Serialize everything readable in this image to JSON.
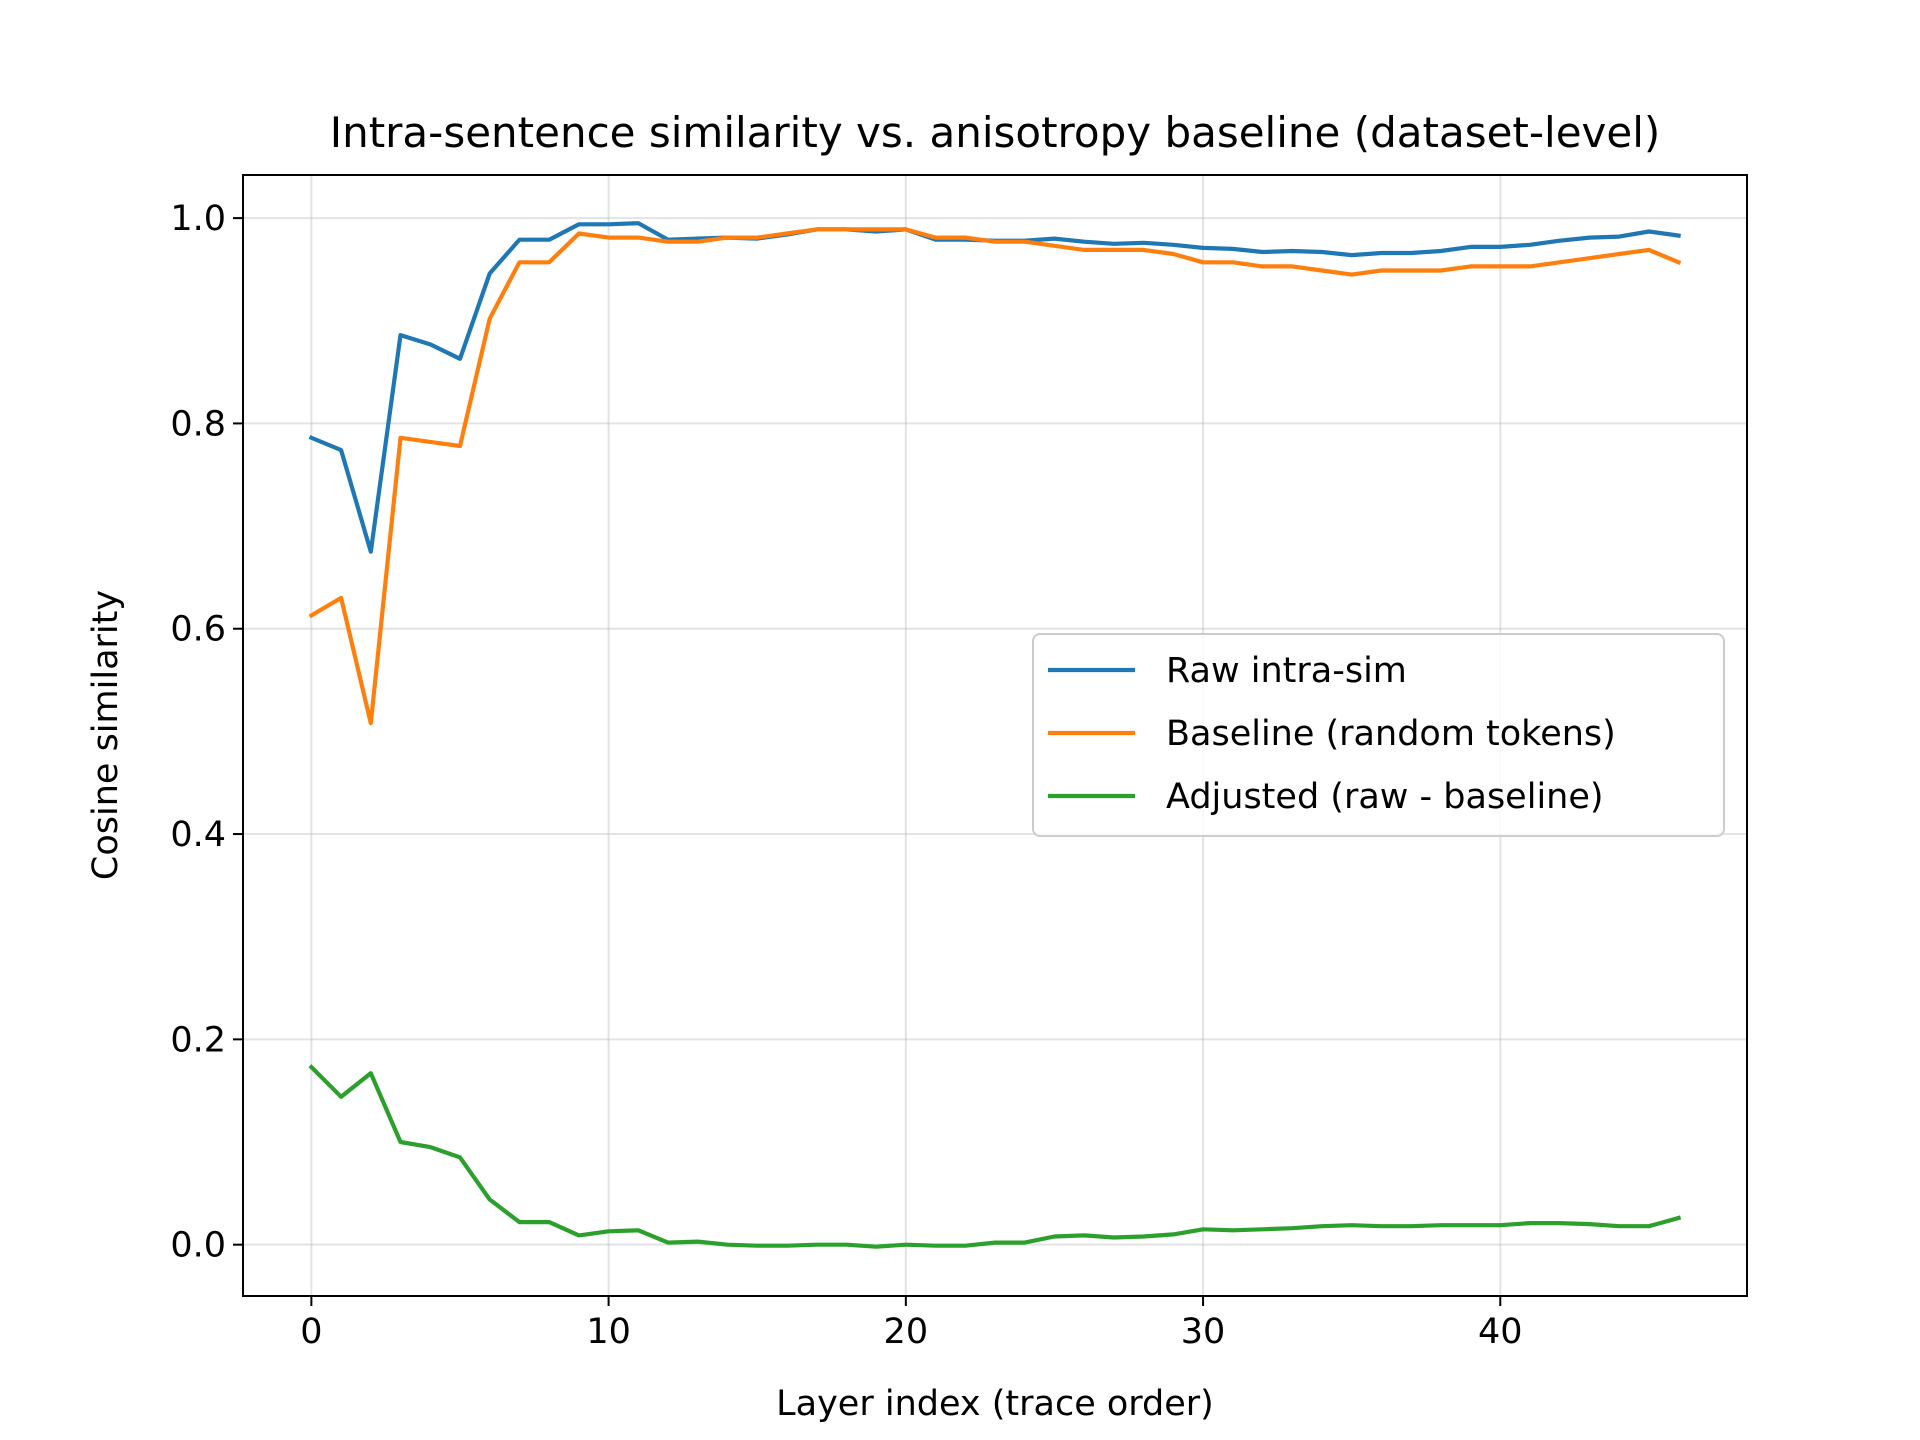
{
  "chart_data": {
    "type": "line",
    "title": "Intra-sentence similarity vs. anisotropy baseline (dataset-level)",
    "xlabel": "Layer index (trace order)",
    "ylabel": "Cosine similarity",
    "xlim": [
      -2.3,
      48.3
    ],
    "ylim": [
      -0.05,
      1.042
    ],
    "xticks": [
      0,
      10,
      20,
      30,
      40
    ],
    "yticks": [
      0.0,
      0.2,
      0.4,
      0.6,
      0.8,
      1.0
    ],
    "xtick_labels": [
      "0",
      "10",
      "20",
      "30",
      "40"
    ],
    "ytick_labels": [
      "0.0",
      "0.2",
      "0.4",
      "0.6",
      "0.8",
      "1.0"
    ],
    "grid": true,
    "legend_position": "center-right",
    "x": [
      0,
      1,
      2,
      3,
      4,
      5,
      6,
      7,
      8,
      9,
      10,
      11,
      12,
      13,
      14,
      15,
      16,
      17,
      18,
      19,
      20,
      21,
      22,
      23,
      24,
      25,
      26,
      27,
      28,
      29,
      30,
      31,
      32,
      33,
      34,
      35,
      36,
      37,
      38,
      39,
      40,
      41,
      42,
      43,
      44,
      45,
      46
    ],
    "series": [
      {
        "name": "Raw intra-sim",
        "color": "#1f77b4",
        "values": [
          0.786,
          0.774,
          0.675,
          0.886,
          0.877,
          0.863,
          0.946,
          0.979,
          0.979,
          0.994,
          0.994,
          0.995,
          0.979,
          0.98,
          0.981,
          0.98,
          0.984,
          0.989,
          0.989,
          0.987,
          0.989,
          0.979,
          0.979,
          0.978,
          0.978,
          0.98,
          0.977,
          0.975,
          0.976,
          0.974,
          0.971,
          0.97,
          0.967,
          0.968,
          0.967,
          0.964,
          0.966,
          0.966,
          0.968,
          0.972,
          0.972,
          0.974,
          0.978,
          0.981,
          0.982,
          0.987,
          0.983
        ]
      },
      {
        "name": "Baseline (random tokens)",
        "color": "#ff7f0e",
        "values": [
          0.613,
          0.63,
          0.508,
          0.786,
          0.782,
          0.778,
          0.902,
          0.957,
          0.957,
          0.985,
          0.981,
          0.981,
          0.977,
          0.977,
          0.981,
          0.981,
          0.985,
          0.989,
          0.989,
          0.989,
          0.989,
          0.981,
          0.981,
          0.977,
          0.977,
          0.973,
          0.969,
          0.969,
          0.969,
          0.965,
          0.957,
          0.957,
          0.953,
          0.953,
          0.949,
          0.945,
          0.949,
          0.949,
          0.949,
          0.953,
          0.953,
          0.953,
          0.957,
          0.961,
          0.965,
          0.969,
          0.957
        ]
      },
      {
        "name": "Adjusted (raw - baseline)",
        "color": "#2ca02c",
        "values": [
          0.173,
          0.144,
          0.167,
          0.1,
          0.095,
          0.085,
          0.044,
          0.022,
          0.022,
          0.009,
          0.013,
          0.014,
          0.002,
          0.003,
          0.0,
          -0.001,
          -0.001,
          0.0,
          0.0,
          -0.002,
          0.0,
          -0.001,
          -0.001,
          0.002,
          0.002,
          0.008,
          0.009,
          0.007,
          0.008,
          0.01,
          0.015,
          0.014,
          0.015,
          0.016,
          0.018,
          0.019,
          0.018,
          0.018,
          0.019,
          0.019,
          0.019,
          0.021,
          0.021,
          0.02,
          0.018,
          0.018,
          0.026
        ]
      }
    ]
  }
}
